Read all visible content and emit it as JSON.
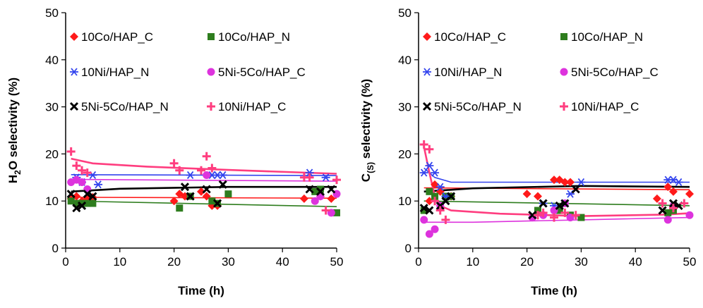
{
  "chart_data": [
    {
      "type": "scatter",
      "xlabel": "Time (h)",
      "ylabel": "H2O selectivity (%)",
      "ylabel_parts": {
        "pre": "H",
        "sub": "2",
        "post": "O selectivity (%)"
      },
      "xlim": [
        0,
        50
      ],
      "ylim": [
        0,
        50
      ],
      "xticks": [
        0,
        10,
        20,
        30,
        40,
        50
      ],
      "yticks": [
        0,
        10,
        20,
        30,
        40,
        50
      ],
      "grid": false,
      "legend_position": "top",
      "series": [
        {
          "name": "10Co/HAP_C",
          "marker": "diamond",
          "color": "#ff1a1a",
          "points": [
            [
              1,
              10.5
            ],
            [
              2,
              11
            ],
            [
              3,
              10
            ],
            [
              4,
              10.5
            ],
            [
              5,
              10.8
            ],
            [
              20,
              10
            ],
            [
              21,
              11.5
            ],
            [
              22,
              11
            ],
            [
              25,
              12
            ],
            [
              26,
              11
            ],
            [
              27,
              9
            ],
            [
              28,
              9
            ],
            [
              44,
              10.5
            ],
            [
              47,
              11
            ],
            [
              49,
              10.5
            ]
          ],
          "trend": [
            [
              1,
              10.8
            ],
            [
              50,
              10.6
            ]
          ]
        },
        {
          "name": "10Co/HAP_N",
          "marker": "square",
          "color": "#2e7d1e",
          "points": [
            [
              1,
              10
            ],
            [
              2,
              9.5
            ],
            [
              3,
              9.5
            ],
            [
              4,
              9.5
            ],
            [
              5,
              9.5
            ],
            [
              21,
              8.5
            ],
            [
              23,
              11
            ],
            [
              27,
              10
            ],
            [
              28,
              9.5
            ],
            [
              30,
              11.5
            ],
            [
              46,
              12
            ],
            [
              47,
              12.5
            ],
            [
              50,
              7.5
            ]
          ],
          "trend": [
            [
              1,
              10
            ],
            [
              50,
              8.8
            ]
          ]
        },
        {
          "name": "10Ni/HAP_N",
          "marker": "asterisk",
          "color": "#3344ee",
          "points": [
            [
              2,
              15
            ],
            [
              3,
              14
            ],
            [
              5,
              15.5
            ],
            [
              6,
              13.5
            ],
            [
              23,
              15.5
            ],
            [
              27,
              15.5
            ],
            [
              28,
              15.5
            ],
            [
              29,
              15.5
            ],
            [
              45,
              16
            ],
            [
              48,
              15
            ]
          ],
          "trend": [
            [
              1,
              15.6
            ],
            [
              50,
              15.4
            ]
          ]
        },
        {
          "name": "5Ni-5Co/HAP_C",
          "marker": "circle",
          "color": "#dd33dd",
          "points": [
            [
              1,
              14
            ],
            [
              2,
              14.5
            ],
            [
              3,
              14
            ],
            [
              4,
              12.5
            ],
            [
              26,
              15.5
            ],
            [
              46,
              10
            ],
            [
              47,
              11
            ],
            [
              49,
              7.5
            ],
            [
              50,
              11.5
            ]
          ],
          "trend": [
            [
              1,
              14.6
            ],
            [
              50,
              14.2
            ]
          ]
        },
        {
          "name": "5Ni-5Co/HAP_N",
          "marker": "x",
          "color": "#000000",
          "points": [
            [
              1,
              11.5
            ],
            [
              2,
              8.5
            ],
            [
              3,
              9
            ],
            [
              4,
              11.5
            ],
            [
              5,
              11
            ],
            [
              22,
              13
            ],
            [
              23,
              11
            ],
            [
              26,
              12.5
            ],
            [
              28,
              9.5
            ],
            [
              29,
              13.5
            ],
            [
              45,
              12.5
            ],
            [
              47,
              12
            ],
            [
              49,
              12.5
            ]
          ],
          "trend": [
            [
              1,
              12
            ],
            [
              10,
              12.6
            ],
            [
              30,
              13
            ],
            [
              50,
              13
            ]
          ]
        },
        {
          "name": "10Ni/HAP_C",
          "marker": "plus",
          "color": "#ff3d7f",
          "points": [
            [
              1,
              20.5
            ],
            [
              2,
              17.5
            ],
            [
              3,
              16.5
            ],
            [
              4,
              16
            ],
            [
              20,
              18
            ],
            [
              21,
              16.5
            ],
            [
              25,
              16.5
            ],
            [
              26,
              19.5
            ],
            [
              27,
              17
            ],
            [
              44,
              15
            ],
            [
              45,
              15
            ],
            [
              48,
              8
            ],
            [
              50,
              14.5
            ]
          ],
          "trend": [
            [
              1,
              19
            ],
            [
              5,
              18
            ],
            [
              15,
              17.3
            ],
            [
              30,
              16.6
            ],
            [
              50,
              15.8
            ]
          ]
        }
      ]
    },
    {
      "type": "scatter",
      "xlabel": "Time (h)",
      "ylabel": "C(S) selectivity (%)",
      "ylabel_parts": {
        "pre": "C",
        "sub": "(S)",
        "post": " selectivity (%)"
      },
      "xlim": [
        0,
        50
      ],
      "ylim": [
        0,
        50
      ],
      "xticks": [
        0,
        10,
        20,
        30,
        40,
        50
      ],
      "yticks": [
        0,
        10,
        20,
        30,
        40,
        50
      ],
      "grid": false,
      "legend_position": "top",
      "series": [
        {
          "name": "10Co/HAP_C",
          "marker": "diamond",
          "color": "#ff1a1a",
          "points": [
            [
              2,
              10
            ],
            [
              3,
              13.5
            ],
            [
              4,
              12
            ],
            [
              6,
              11
            ],
            [
              20,
              11.5
            ],
            [
              22,
              11
            ],
            [
              25,
              14.5
            ],
            [
              26,
              14.5
            ],
            [
              27,
              14
            ],
            [
              28,
              14
            ],
            [
              44,
              10.5
            ],
            [
              46,
              13
            ],
            [
              47,
              12
            ],
            [
              50,
              11.5
            ]
          ],
          "trend": [
            [
              1,
              12.8
            ],
            [
              50,
              12.4
            ]
          ]
        },
        {
          "name": "10Co/HAP_N",
          "marker": "square",
          "color": "#2e7d1e",
          "points": [
            [
              1,
              8
            ],
            [
              2,
              12
            ],
            [
              3,
              11
            ],
            [
              5,
              11
            ],
            [
              6,
              11
            ],
            [
              22,
              8
            ],
            [
              26,
              8
            ],
            [
              28,
              7
            ],
            [
              30,
              6.5
            ],
            [
              46,
              7.5
            ],
            [
              47,
              8
            ]
          ],
          "trend": [
            [
              1,
              10
            ],
            [
              50,
              9
            ]
          ]
        },
        {
          "name": "10Ni/HAP_N",
          "marker": "asterisk",
          "color": "#3344ee",
          "points": [
            [
              1,
              16
            ],
            [
              2,
              17.5
            ],
            [
              3,
              16
            ],
            [
              4,
              13
            ],
            [
              5,
              11
            ],
            [
              23,
              9.5
            ],
            [
              25,
              9
            ],
            [
              28,
              11.5
            ],
            [
              30,
              14
            ],
            [
              46,
              14.5
            ],
            [
              47,
              14.5
            ],
            [
              48,
              14
            ]
          ],
          "trend": [
            [
              1,
              17
            ],
            [
              3,
              15
            ],
            [
              6,
              14
            ],
            [
              20,
              14
            ],
            [
              50,
              14
            ]
          ]
        },
        {
          "name": "5Ni-5Co/HAP_C",
          "marker": "circle",
          "color": "#dd33dd",
          "points": [
            [
              1,
              6
            ],
            [
              2,
              3
            ],
            [
              3,
              4
            ],
            [
              4,
              9
            ],
            [
              21,
              6.5
            ],
            [
              23,
              7
            ],
            [
              25,
              8
            ],
            [
              27,
              9.5
            ],
            [
              28,
              6.5
            ],
            [
              46,
              6
            ],
            [
              47,
              9
            ],
            [
              50,
              7
            ]
          ],
          "trend": [
            [
              1,
              5.5
            ],
            [
              10,
              5.5
            ],
            [
              30,
              6
            ],
            [
              50,
              6.5
            ]
          ]
        },
        {
          "name": "5Ni-5Co/HAP_N",
          "marker": "x",
          "color": "#000000",
          "points": [
            [
              1,
              8.5
            ],
            [
              2,
              8
            ],
            [
              4,
              9
            ],
            [
              5,
              10
            ],
            [
              6,
              11
            ],
            [
              21,
              7
            ],
            [
              23,
              9.5
            ],
            [
              26,
              9
            ],
            [
              27,
              9.5
            ],
            [
              29,
              12.5
            ],
            [
              45,
              8
            ],
            [
              47,
              9.5
            ],
            [
              48,
              9
            ]
          ],
          "trend": [
            [
              1,
              12
            ],
            [
              10,
              12.7
            ],
            [
              30,
              13.2
            ],
            [
              50,
              13
            ]
          ]
        },
        {
          "name": "10Ni/HAP_C",
          "marker": "plus",
          "color": "#ff3d7f",
          "points": [
            [
              1,
              22
            ],
            [
              2,
              21
            ],
            [
              3,
              10
            ],
            [
              4,
              8
            ],
            [
              5,
              6
            ],
            [
              22,
              7
            ],
            [
              23,
              7.5
            ],
            [
              25,
              6.5
            ],
            [
              27,
              7.5
            ],
            [
              29,
              7
            ],
            [
              45,
              9.5
            ],
            [
              47,
              8.5
            ],
            [
              49,
              9.5
            ]
          ],
          "trend": [
            [
              1,
              21.5
            ],
            [
              2,
              16
            ],
            [
              3,
              11
            ],
            [
              4,
              9
            ],
            [
              6,
              8
            ],
            [
              15,
              7.3
            ],
            [
              30,
              6.8
            ],
            [
              45,
              7.1
            ],
            [
              50,
              7.4
            ]
          ]
        }
      ]
    }
  ]
}
